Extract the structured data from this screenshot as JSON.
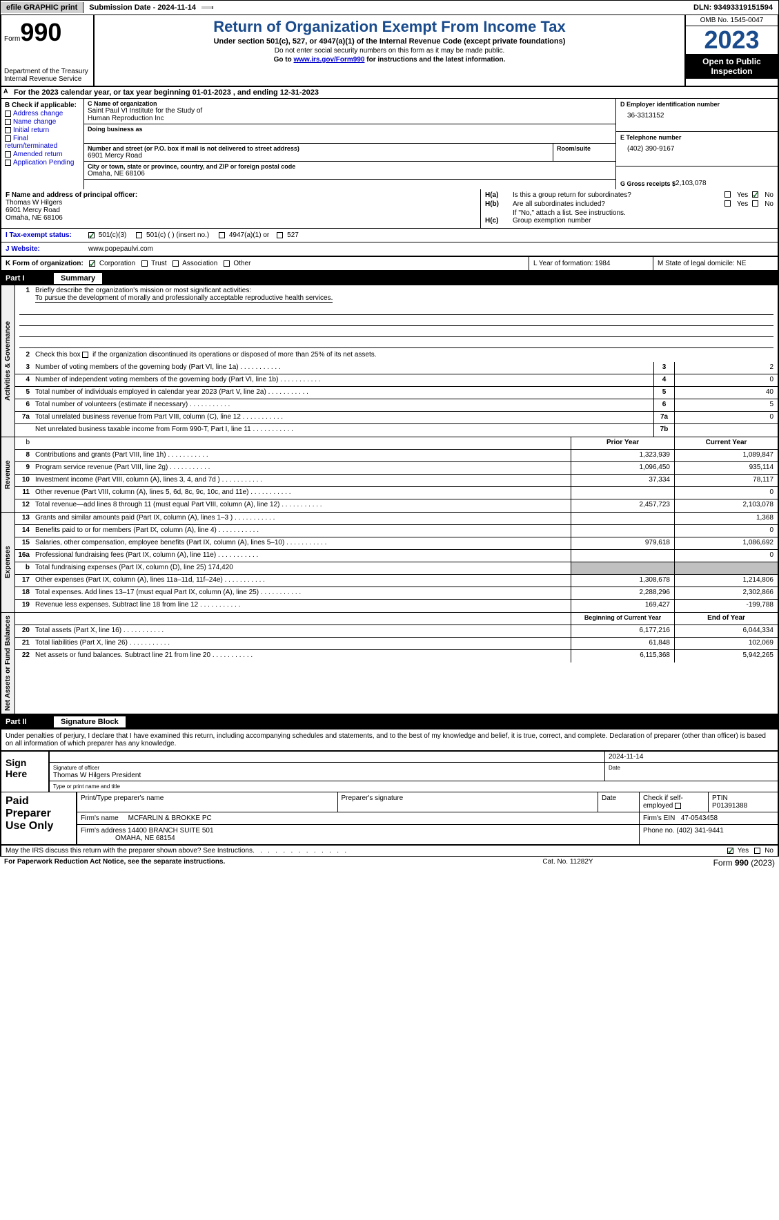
{
  "topbar": {
    "efile_btn": "efile GRAPHIC print",
    "submission": "Submission Date - 2024-11-14",
    "dln": "DLN: 93493319151594"
  },
  "header": {
    "form_label": "Form",
    "form_num": "990",
    "title": "Return of Organization Exempt From Income Tax",
    "subtitle": "Under section 501(c), 527, or 4947(a)(1) of the Internal Revenue Code (except private foundations)",
    "note1": "Do not enter social security numbers on this form as it may be made public.",
    "goto_prefix": "Go to ",
    "goto_url": "www.irs.gov/Form990",
    "goto_suffix": " for instructions and the latest information.",
    "dept": "Department of the Treasury\nInternal Revenue Service",
    "omb": "OMB No. 1545-0047",
    "year": "2023",
    "inspect": "Open to Public Inspection"
  },
  "rowA": {
    "text": "For the 2023 calendar year, or tax year beginning 01-01-2023    , and ending 12-31-2023"
  },
  "sectionB": {
    "header": "B Check if applicable:",
    "items": [
      "Address change",
      "Name change",
      "Initial return",
      "Final return/terminated",
      "Amended return",
      "Application Pending"
    ]
  },
  "sectionC": {
    "name_label": "C Name of organization",
    "name": "Saint Paul VI Institute for the Study of\nHuman Reproduction Inc",
    "dba_label": "Doing business as",
    "dba": "",
    "street_label": "Number and street (or P.O. box if mail is not delivered to street address)",
    "street": "6901 Mercy Road",
    "room_label": "Room/suite",
    "city_label": "City or town, state or province, country, and ZIP or foreign postal code",
    "city": "Omaha, NE  68106"
  },
  "sectionD": {
    "ein_label": "D Employer identification number",
    "ein": "36-3313152",
    "phone_label": "E Telephone number",
    "phone": "(402) 390-9167",
    "gross_label": "G Gross receipts $",
    "gross": "2,103,078"
  },
  "sectionF": {
    "label": "F  Name and address of principal officer:",
    "name": "Thomas W Hilgers",
    "street": "6901 Mercy Road",
    "city": "Omaha, NE  68106"
  },
  "sectionH": {
    "a_label": "H(a)",
    "a_text": "Is this a group return for subordinates?",
    "b_label": "H(b)",
    "b_text": "Are all subordinates included?",
    "b_note": "If \"No,\" attach a list. See instructions.",
    "c_label": "H(c)",
    "c_text": "Group exemption number",
    "yes": "Yes",
    "no": "No"
  },
  "rowI": {
    "label": "I   Tax-exempt status:",
    "opt1": "501(c)(3)",
    "opt2": "501(c) (  ) (insert no.)",
    "opt3": "4947(a)(1) or",
    "opt4": "527"
  },
  "rowJ": {
    "label": "J   Website:",
    "url": "www.popepaulvi.com"
  },
  "rowK": {
    "label": "K Form of organization:",
    "opts": [
      "Corporation",
      "Trust",
      "Association",
      "Other"
    ],
    "L": "L Year of formation: 1984",
    "M": "M State of legal domicile: NE"
  },
  "partI": {
    "num": "Part I",
    "title": "Summary"
  },
  "mission": {
    "q": "Briefly describe the organization's mission or most significant activities:",
    "text": "To pursue the development of morally and professionally acceptable reproductive health services."
  },
  "vtabs": {
    "gov": "Activities & Governance",
    "rev": "Revenue",
    "exp": "Expenses",
    "net": "Net Assets or Fund Balances"
  },
  "gov_lines": [
    {
      "n": "2",
      "d": "Check this box       if the organization discontinued its operations or disposed of more than 25% of its net assets.",
      "box": "",
      "v": ""
    },
    {
      "n": "3",
      "d": "Number of voting members of the governing body (Part VI, line 1a)",
      "box": "3",
      "v": "2"
    },
    {
      "n": "4",
      "d": "Number of independent voting members of the governing body (Part VI, line 1b)",
      "box": "4",
      "v": "0"
    },
    {
      "n": "5",
      "d": "Total number of individuals employed in calendar year 2023 (Part V, line 2a)",
      "box": "5",
      "v": "40"
    },
    {
      "n": "6",
      "d": "Total number of volunteers (estimate if necessary)",
      "box": "6",
      "v": "5"
    },
    {
      "n": "7a",
      "d": "Total unrelated business revenue from Part VIII, column (C), line 12",
      "box": "7a",
      "v": "0"
    },
    {
      "n": "",
      "d": "Net unrelated business taxable income from Form 990-T, Part I, line 11",
      "box": "7b",
      "v": ""
    }
  ],
  "rev_header": {
    "prior": "Prior Year",
    "curr": "Current Year"
  },
  "rev_lines": [
    {
      "n": "8",
      "d": "Contributions and grants (Part VIII, line 1h)",
      "p": "1,323,939",
      "c": "1,089,847"
    },
    {
      "n": "9",
      "d": "Program service revenue (Part VIII, line 2g)",
      "p": "1,096,450",
      "c": "935,114"
    },
    {
      "n": "10",
      "d": "Investment income (Part VIII, column (A), lines 3, 4, and 7d )",
      "p": "37,334",
      "c": "78,117"
    },
    {
      "n": "11",
      "d": "Other revenue (Part VIII, column (A), lines 5, 6d, 8c, 9c, 10c, and 11e)",
      "p": "",
      "c": "0"
    },
    {
      "n": "12",
      "d": "Total revenue—add lines 8 through 11 (must equal Part VIII, column (A), line 12)",
      "p": "2,457,723",
      "c": "2,103,078"
    }
  ],
  "exp_lines": [
    {
      "n": "13",
      "d": "Grants and similar amounts paid (Part IX, column (A), lines 1–3 )",
      "p": "",
      "c": "1,368"
    },
    {
      "n": "14",
      "d": "Benefits paid to or for members (Part IX, column (A), line 4)",
      "p": "",
      "c": "0"
    },
    {
      "n": "15",
      "d": "Salaries, other compensation, employee benefits (Part IX, column (A), lines 5–10)",
      "p": "979,618",
      "c": "1,086,692"
    },
    {
      "n": "16a",
      "d": "Professional fundraising fees (Part IX, column (A), line 11e)",
      "p": "",
      "c": "0"
    },
    {
      "n": "b",
      "d": "Total fundraising expenses (Part IX, column (D), line 25) 174,420",
      "p": "grey",
      "c": "grey"
    },
    {
      "n": "17",
      "d": "Other expenses (Part IX, column (A), lines 11a–11d, 11f–24e)",
      "p": "1,308,678",
      "c": "1,214,806"
    },
    {
      "n": "18",
      "d": "Total expenses. Add lines 13–17 (must equal Part IX, column (A), line 25)",
      "p": "2,288,296",
      "c": "2,302,866"
    },
    {
      "n": "19",
      "d": "Revenue less expenses. Subtract line 18 from line 12",
      "p": "169,427",
      "c": "-199,788"
    }
  ],
  "net_header": {
    "prior": "Beginning of Current Year",
    "curr": "End of Year"
  },
  "net_lines": [
    {
      "n": "20",
      "d": "Total assets (Part X, line 16)",
      "p": "6,177,216",
      "c": "6,044,334"
    },
    {
      "n": "21",
      "d": "Total liabilities (Part X, line 26)",
      "p": "61,848",
      "c": "102,069"
    },
    {
      "n": "22",
      "d": "Net assets or fund balances. Subtract line 21 from line 20",
      "p": "6,115,368",
      "c": "5,942,265"
    }
  ],
  "partII": {
    "num": "Part II",
    "title": "Signature Block"
  },
  "sig_decl": "Under penalties of perjury, I declare that I have examined this return, including accompanying schedules and statements, and to the best of my knowledge and belief, it is true, correct, and complete. Declaration of preparer (other than officer) is based on all information of which preparer has any knowledge.",
  "sign": {
    "label": "Sign Here",
    "date": "2024-11-14",
    "sig_label": "Signature of officer",
    "officer": "Thomas W Hilgers  President",
    "type_label": "Type or print name and title",
    "date_label": "Date"
  },
  "paid": {
    "label": "Paid Preparer Use Only",
    "h_name": "Print/Type preparer's name",
    "h_sig": "Preparer's signature",
    "h_date": "Date",
    "h_self": "Check        if self-employed",
    "h_ptin": "PTIN",
    "ptin": "P01391388",
    "firm_label": "Firm's name",
    "firm": "MCFARLIN & BROKKE PC",
    "ein_label": "Firm's EIN",
    "ein": "47-0543458",
    "addr_label": "Firm's address",
    "addr1": "14400 BRANCH SUITE 501",
    "addr2": "OMAHA, NE  68154",
    "phone_label": "Phone no.",
    "phone": "(402) 341-9441"
  },
  "footer": {
    "q": "May the IRS discuss this return with the preparer shown above? See Instructions.",
    "yes": "Yes",
    "no": "No",
    "paperwork": "For Paperwork Reduction Act Notice, see the separate instructions.",
    "cat": "Cat. No. 11282Y",
    "form": "Form 990 (2023)"
  }
}
